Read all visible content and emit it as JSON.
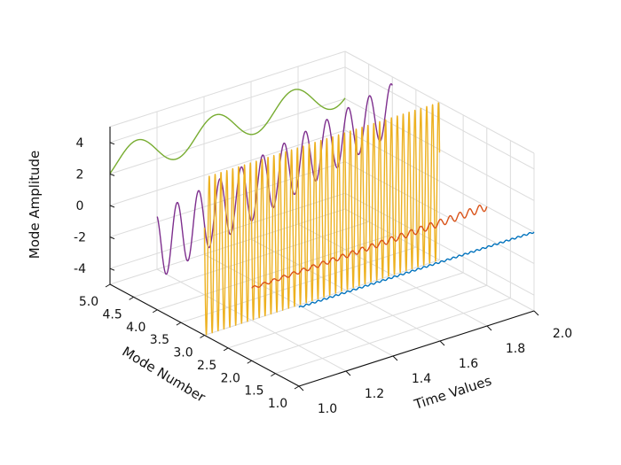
{
  "chart_data": {
    "type": "line",
    "view": "3d",
    "axes": {
      "x": {
        "label": "Time Values",
        "range": [
          1.0,
          2.0
        ],
        "ticks": [
          1.0,
          1.2,
          1.4,
          1.6,
          1.8,
          2.0
        ],
        "tick_labels": [
          "1.0",
          "1.2",
          "1.4",
          "1.6",
          "1.8",
          "2.0"
        ]
      },
      "y": {
        "label": "Mode Number",
        "range": [
          1.0,
          5.0
        ],
        "ticks": [
          1.0,
          1.5,
          2.0,
          2.5,
          3.0,
          3.5,
          4.0,
          4.5,
          5.0
        ],
        "tick_labels": [
          "1.0",
          "1.5",
          "2.0",
          "2.5",
          "3.0",
          "3.5",
          "4.0",
          "4.5",
          "5.0"
        ]
      },
      "z": {
        "label": "Mode Amplitude",
        "range": [
          -5,
          5
        ],
        "ticks": [
          -4,
          -2,
          0,
          2,
          4
        ],
        "tick_labels": [
          "-4",
          "-2",
          "0",
          "2",
          "4"
        ]
      }
    },
    "grid": true,
    "series": [
      {
        "mode": 1,
        "color": "#0072BD",
        "amplitude": 0.05,
        "cycles": 40,
        "description_values": "nearly flat line at z≈0"
      },
      {
        "mode": 2,
        "color": "#D95319",
        "amplitude": 0.25,
        "cycles": 24,
        "growth": "increasing",
        "description_values": "small oscillation growing toward t=2"
      },
      {
        "mode": 3,
        "color": "#EDB120",
        "amplitude": 5,
        "cycles": 40,
        "description_values": "large oscillation ±5"
      },
      {
        "mode": 4,
        "color": "#7E2F8E",
        "amplitude_start": 2.1,
        "amplitude_end": 1.6,
        "center_start": -1.0,
        "center_end": 3.0,
        "cycles": 11
      },
      {
        "mode": 5,
        "color": "#77AC30",
        "amplitude": 1.0,
        "center": 2.6,
        "cycles": 3
      }
    ],
    "colors": {
      "blue": "#0072BD",
      "orange": "#D95319",
      "yellow": "#EDB120",
      "purple": "#7E2F8E",
      "green": "#77AC30"
    }
  }
}
